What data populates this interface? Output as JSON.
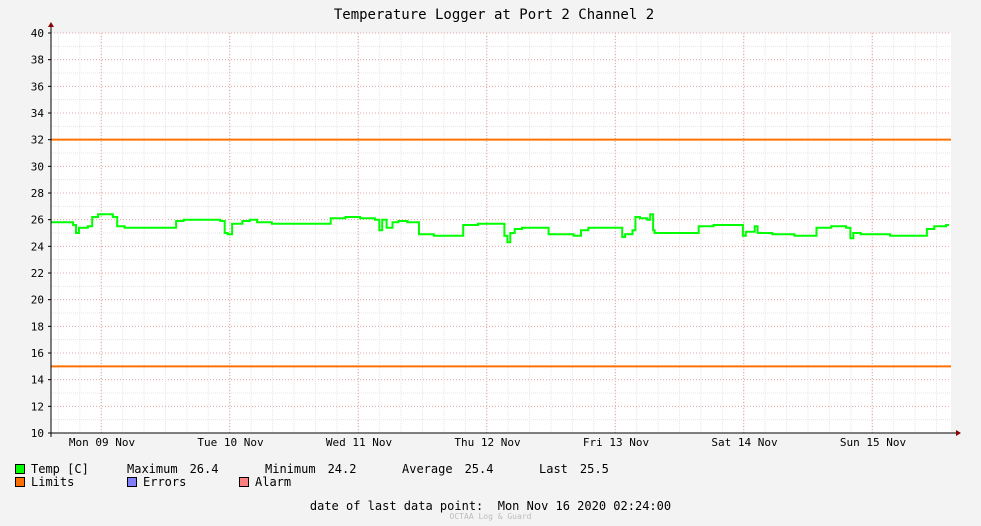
{
  "chart_data": {
    "type": "line",
    "title": "Temperature Logger at Port 2 Channel 2",
    "ylim": [
      10,
      40
    ],
    "y_ticks": [
      "40",
      "38",
      "36",
      "34",
      "32",
      "30",
      "28",
      "26",
      "24",
      "22",
      "20",
      "18",
      "16",
      "14",
      "12",
      "10"
    ],
    "x_tick_labels": [
      "Mon 09 Nov",
      "Tue 10 Nov",
      "Wed 11 Nov",
      "Thu 12 Nov",
      "Fri 13 Nov",
      "Sat 14 Nov",
      "Sun 15 Nov"
    ],
    "grid": true,
    "series": [
      {
        "name": "Temp [C]",
        "color": "#00ff00",
        "points": [
          [
            0.0,
            25.8
          ],
          [
            0.1,
            25.8
          ],
          [
            0.15,
            25.6
          ],
          [
            0.17,
            25.0
          ],
          [
            0.19,
            25.4
          ],
          [
            0.25,
            25.5
          ],
          [
            0.28,
            26.2
          ],
          [
            0.32,
            26.4
          ],
          [
            0.38,
            26.4
          ],
          [
            0.42,
            26.2
          ],
          [
            0.45,
            25.5
          ],
          [
            0.5,
            25.4
          ],
          [
            0.6,
            25.4
          ],
          [
            0.7,
            25.4
          ],
          [
            0.8,
            25.4
          ],
          [
            0.85,
            25.9
          ],
          [
            0.9,
            26.0
          ],
          [
            1.0,
            26.0
          ],
          [
            1.1,
            26.0
          ],
          [
            1.15,
            25.9
          ],
          [
            1.18,
            25.0
          ],
          [
            1.2,
            24.9
          ],
          [
            1.23,
            25.7
          ],
          [
            1.3,
            25.9
          ],
          [
            1.35,
            26.0
          ],
          [
            1.4,
            25.8
          ],
          [
            1.5,
            25.7
          ],
          [
            1.6,
            25.7
          ],
          [
            1.7,
            25.7
          ],
          [
            1.85,
            25.7
          ],
          [
            1.9,
            26.1
          ],
          [
            2.0,
            26.2
          ],
          [
            2.1,
            26.1
          ],
          [
            2.2,
            26.0
          ],
          [
            2.23,
            25.2
          ],
          [
            2.25,
            26.0
          ],
          [
            2.28,
            25.4
          ],
          [
            2.32,
            25.8
          ],
          [
            2.36,
            25.9
          ],
          [
            2.42,
            25.8
          ],
          [
            2.48,
            25.8
          ],
          [
            2.5,
            24.9
          ],
          [
            2.6,
            24.8
          ],
          [
            2.7,
            24.8
          ],
          [
            2.78,
            24.8
          ],
          [
            2.8,
            25.6
          ],
          [
            2.9,
            25.7
          ],
          [
            3.0,
            25.7
          ],
          [
            3.05,
            25.7
          ],
          [
            3.08,
            24.8
          ],
          [
            3.1,
            24.3
          ],
          [
            3.12,
            25.0
          ],
          [
            3.15,
            25.3
          ],
          [
            3.2,
            25.4
          ],
          [
            3.3,
            25.4
          ],
          [
            3.35,
            25.4
          ],
          [
            3.38,
            24.9
          ],
          [
            3.45,
            24.9
          ],
          [
            3.55,
            24.8
          ],
          [
            3.6,
            25.2
          ],
          [
            3.65,
            25.4
          ],
          [
            3.75,
            25.4
          ],
          [
            3.85,
            25.4
          ],
          [
            3.88,
            24.7
          ],
          [
            3.9,
            24.9
          ],
          [
            3.95,
            25.2
          ],
          [
            3.97,
            26.2
          ],
          [
            4.0,
            26.1
          ],
          [
            4.05,
            26.0
          ],
          [
            4.07,
            26.4
          ],
          [
            4.09,
            25.2
          ],
          [
            4.1,
            25.0
          ],
          [
            4.2,
            25.0
          ],
          [
            4.3,
            25.0
          ],
          [
            4.36,
            25.0
          ],
          [
            4.4,
            25.5
          ],
          [
            4.5,
            25.6
          ],
          [
            4.6,
            25.6
          ],
          [
            4.68,
            25.6
          ],
          [
            4.7,
            24.8
          ],
          [
            4.72,
            25.1
          ],
          [
            4.78,
            25.5
          ],
          [
            4.8,
            25.0
          ],
          [
            4.9,
            24.9
          ],
          [
            5.0,
            24.9
          ],
          [
            5.05,
            24.8
          ],
          [
            5.1,
            24.8
          ],
          [
            5.15,
            24.8
          ],
          [
            5.2,
            25.4
          ],
          [
            5.3,
            25.5
          ],
          [
            5.35,
            25.5
          ],
          [
            5.4,
            25.4
          ],
          [
            5.43,
            24.6
          ],
          [
            5.45,
            25.0
          ],
          [
            5.5,
            24.9
          ],
          [
            5.6,
            24.9
          ],
          [
            5.7,
            24.8
          ],
          [
            5.8,
            24.8
          ],
          [
            5.9,
            24.8
          ],
          [
            5.95,
            25.3
          ],
          [
            6.0,
            25.5
          ],
          [
            6.08,
            25.6
          ],
          [
            6.1,
            25.6
          ]
        ]
      },
      {
        "name": "Limits",
        "color": "#ff7000",
        "values": [
          32,
          15
        ]
      }
    ]
  },
  "legend": {
    "temp": {
      "label": "Temp [C]",
      "color": "#00ff00"
    },
    "limits": {
      "label": "Limits",
      "color": "#ff7000"
    },
    "errors": {
      "label": "Errors",
      "color": "#7f7fff"
    },
    "alarm": {
      "label": "Alarm",
      "color": "#ff7f7f"
    },
    "stats": {
      "maximum_label": "Maximum",
      "maximum_value": "26.4",
      "minimum_label": "Minimum",
      "minimum_value": "24.2",
      "average_label": "Average",
      "average_value": "25.4",
      "last_label": "Last",
      "last_value": "25.5"
    }
  },
  "footer": {
    "date_text": "date of last data point:  Mon Nov 16 2020 02:24:00",
    "watermark": "OCTAA Log & Guard"
  }
}
